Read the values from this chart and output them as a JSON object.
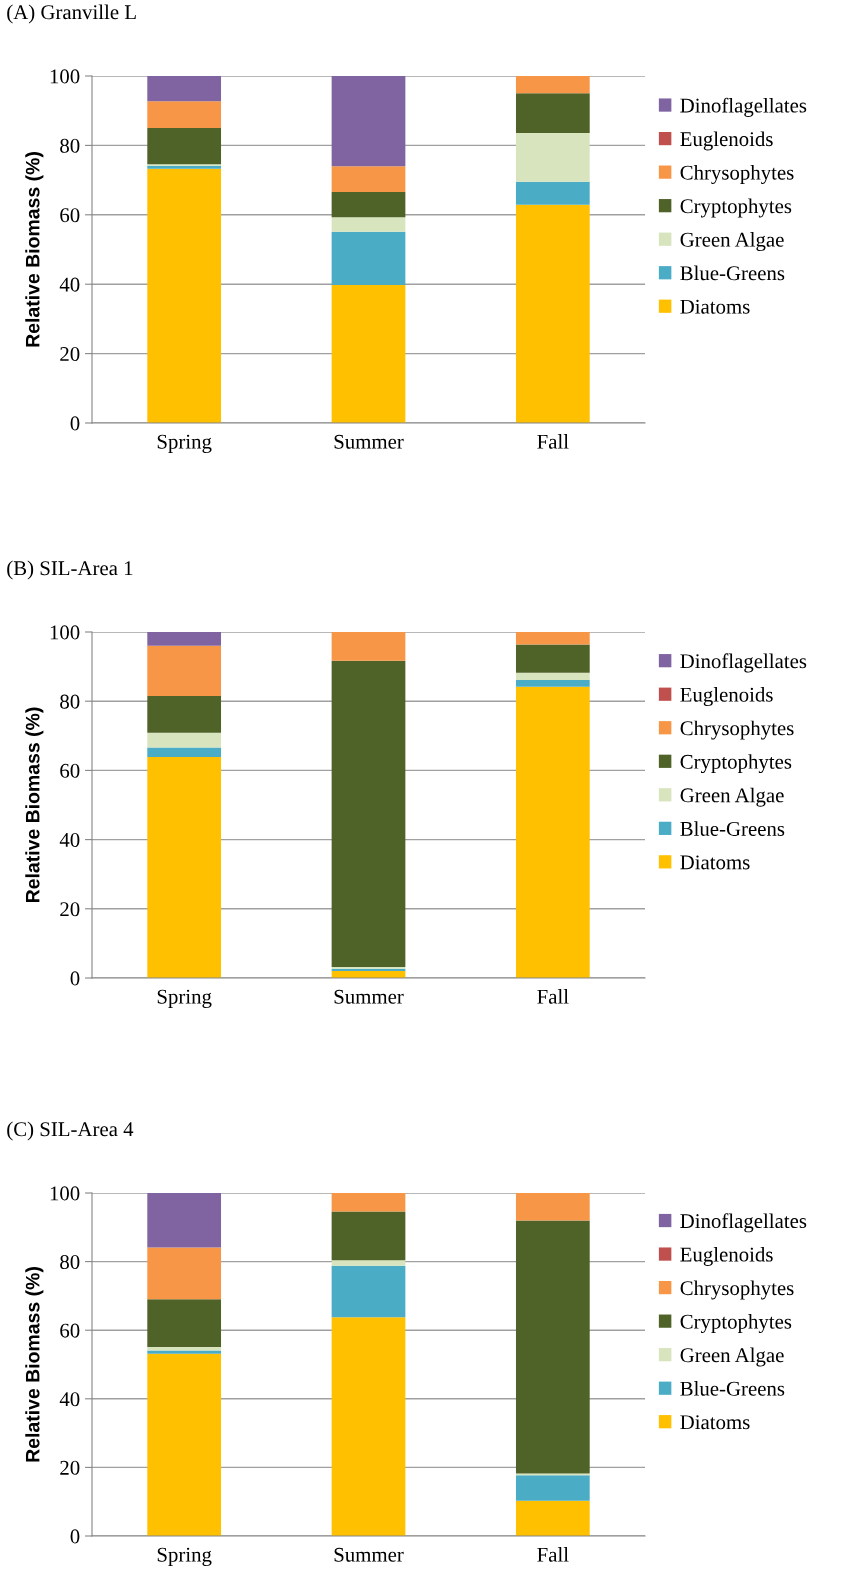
{
  "chart_data": [
    {
      "type": "bar",
      "stacked": true,
      "title": "(A) Granville L",
      "ylabel": "Relative Biomass (%)",
      "categories": [
        "Spring",
        "Summer",
        "Fall"
      ],
      "ylim": [
        0,
        100
      ],
      "yticks": [
        0,
        20,
        40,
        60,
        80,
        100
      ],
      "grid": "y",
      "legend": "right",
      "series": [
        {
          "name": "Diatoms",
          "color": "#ffc000",
          "values": [
            73.3,
            39.8,
            62.9
          ]
        },
        {
          "name": "Blue-Greens",
          "color": "#4bacc6",
          "values": [
            0.8,
            15.3,
            6.6
          ]
        },
        {
          "name": "Green Algae",
          "color": "#d7e4bd",
          "values": [
            0.5,
            4.2,
            14.1
          ]
        },
        {
          "name": "Cryptophytes",
          "color": "#4f6228",
          "values": [
            10.4,
            7.3,
            11.4
          ]
        },
        {
          "name": "Chrysophytes",
          "color": "#f79646",
          "values": [
            7.7,
            7.4,
            5.0
          ]
        },
        {
          "name": "Euglenoids",
          "color": "#c0504d",
          "values": [
            0,
            0,
            0
          ]
        },
        {
          "name": "Dinoflagellates",
          "color": "#8064a2",
          "values": [
            7.3,
            26.0,
            0
          ]
        }
      ]
    },
    {
      "type": "bar",
      "stacked": true,
      "title": "(B) SIL-Area 1",
      "ylabel": "Relative Biomass (%)",
      "categories": [
        "Spring",
        "Summer",
        "Fall"
      ],
      "ylim": [
        0,
        100
      ],
      "yticks": [
        0,
        20,
        40,
        60,
        80,
        100
      ],
      "grid": "y",
      "legend": "right",
      "series": [
        {
          "name": "Diatoms",
          "color": "#ffc000",
          "values": [
            63.9,
            2.0,
            84.2
          ]
        },
        {
          "name": "Blue-Greens",
          "color": "#4bacc6",
          "values": [
            2.7,
            0.7,
            1.9
          ]
        },
        {
          "name": "Green Algae",
          "color": "#d7e4bd",
          "values": [
            4.3,
            0.5,
            2.1
          ]
        },
        {
          "name": "Cryptophytes",
          "color": "#4f6228",
          "values": [
            10.6,
            88.5,
            8.2
          ]
        },
        {
          "name": "Chrysophytes",
          "color": "#f79646",
          "values": [
            14.5,
            8.3,
            3.6
          ]
        },
        {
          "name": "Euglenoids",
          "color": "#c0504d",
          "values": [
            0,
            0,
            0
          ]
        },
        {
          "name": "Dinoflagellates",
          "color": "#8064a2",
          "values": [
            4.0,
            0,
            0
          ]
        }
      ]
    },
    {
      "type": "bar",
      "stacked": true,
      "title": "(C) SIL-Area 4",
      "ylabel": "Relative Biomass (%)",
      "categories": [
        "Spring",
        "Summer",
        "Fall"
      ],
      "ylim": [
        0,
        100
      ],
      "yticks": [
        0,
        20,
        40,
        60,
        80,
        100
      ],
      "grid": "y",
      "legend": "right",
      "series": [
        {
          "name": "Diatoms",
          "color": "#ffc000",
          "values": [
            53.1,
            63.8,
            10.3
          ]
        },
        {
          "name": "Blue-Greens",
          "color": "#4bacc6",
          "values": [
            1.0,
            15.0,
            7.4
          ]
        },
        {
          "name": "Green Algae",
          "color": "#d7e4bd",
          "values": [
            1.0,
            1.6,
            0.5
          ]
        },
        {
          "name": "Cryptophytes",
          "color": "#4f6228",
          "values": [
            13.9,
            14.2,
            73.8
          ]
        },
        {
          "name": "Chrysophytes",
          "color": "#f79646",
          "values": [
            15.1,
            5.4,
            8.1
          ]
        },
        {
          "name": "Euglenoids",
          "color": "#c0504d",
          "values": [
            0,
            0,
            0
          ]
        },
        {
          "name": "Dinoflagellates",
          "color": "#8064a2",
          "values": [
            15.9,
            0,
            0
          ]
        }
      ]
    }
  ]
}
